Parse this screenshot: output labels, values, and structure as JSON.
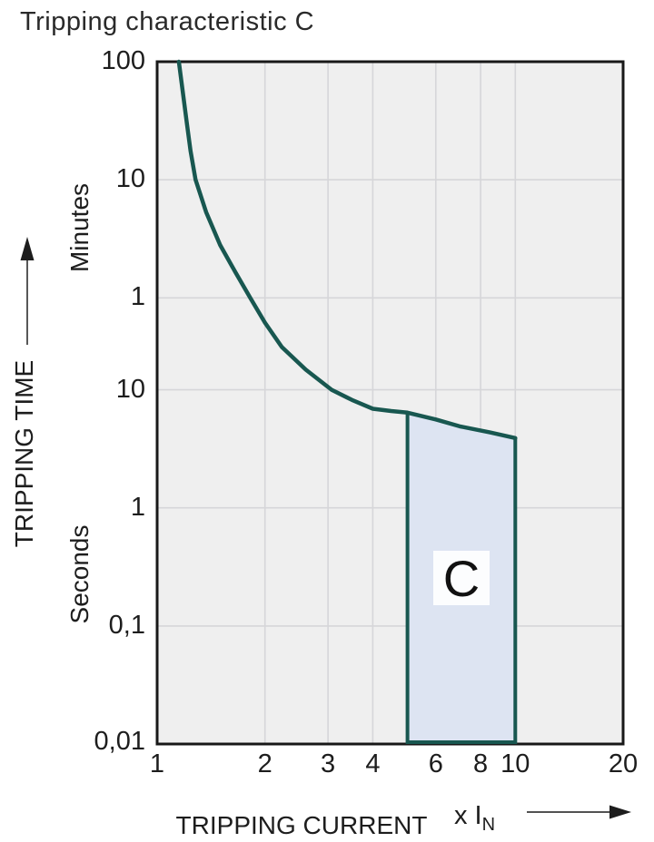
{
  "title": "Tripping characteristic C",
  "colors": {
    "curve": "#185750",
    "region_fill": "#dde4f2",
    "region_border": "#185750",
    "plot_bg": "#efefef",
    "grid": "#d6d6d9",
    "frame": "#181818",
    "arrow": "#3a3a3a",
    "text": "#1d1d1d",
    "region_label_bg": "#fcfdfe"
  },
  "chart_data": {
    "type": "line",
    "title": "Tripping characteristic C",
    "x_axis": {
      "label": "TRIPPING CURRENT",
      "unit_prefix": "x I",
      "unit_sub": "N",
      "scale": "log",
      "min": 1,
      "max": 20,
      "tick_labels": [
        "1",
        "2",
        "3",
        "4",
        "6",
        "8",
        "10",
        "20"
      ],
      "tick_values": [
        1,
        2,
        3,
        4,
        6,
        8,
        10,
        20
      ],
      "gridline_values": [
        2,
        3,
        4,
        6,
        8,
        10
      ]
    },
    "y_axis": {
      "label": "TRIPPING TIME",
      "scale": "log",
      "min_seconds": 0.01,
      "max_seconds": 6000,
      "units": [
        {
          "name": "Minutes",
          "tick_labels": [
            "100",
            "10",
            "1"
          ]
        },
        {
          "name": "Seconds",
          "tick_labels": [
            "10",
            "1",
            "0,1",
            "0,01"
          ]
        }
      ],
      "ticks": [
        {
          "label": "100",
          "seconds": 6000
        },
        {
          "label": "10",
          "seconds": 600
        },
        {
          "label": "1",
          "seconds": 60
        },
        {
          "label": "10",
          "seconds": 10
        },
        {
          "label": "1",
          "seconds": 1
        },
        {
          "label": "0,1",
          "seconds": 0.1
        },
        {
          "label": "0,01",
          "seconds": 0.01
        }
      ],
      "gridline_seconds": [
        600,
        60,
        10,
        1,
        0.1
      ]
    },
    "series": [
      {
        "name": "C tripping curve",
        "points": [
          [
            1.15,
            6000
          ],
          [
            1.18,
            3300
          ],
          [
            1.21,
            1835
          ],
          [
            1.24,
            1050
          ],
          [
            1.28,
            600
          ],
          [
            1.37,
            320
          ],
          [
            1.5,
            168
          ],
          [
            1.65,
            100
          ],
          [
            1.82,
            60
          ],
          [
            2.0,
            37
          ],
          [
            2.23,
            23
          ],
          [
            2.6,
            14.8
          ],
          [
            3.07,
            10
          ],
          [
            3.5,
            8.2
          ],
          [
            4.0,
            6.9
          ],
          [
            4.5,
            6.6
          ],
          [
            5.0,
            6.4
          ],
          [
            6.0,
            5.6
          ],
          [
            7.0,
            4.9
          ],
          [
            8.5,
            4.35
          ],
          [
            10,
            3.9
          ]
        ]
      }
    ],
    "region": {
      "label": "C",
      "x_from": 5,
      "x_to": 10,
      "top_points": [
        [
          5,
          6.4
        ],
        [
          6,
          5.6
        ],
        [
          7,
          4.9
        ],
        [
          8.5,
          4.35
        ],
        [
          10,
          3.9
        ]
      ],
      "bottom_seconds": 0.01
    }
  }
}
